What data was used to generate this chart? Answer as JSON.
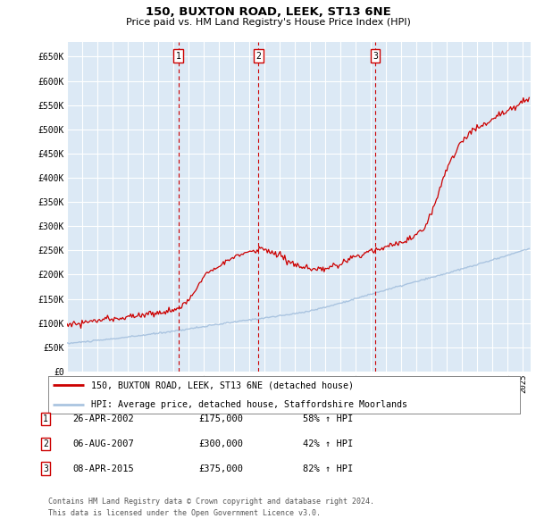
{
  "title": "150, BUXTON ROAD, LEEK, ST13 6NE",
  "subtitle": "Price paid vs. HM Land Registry's House Price Index (HPI)",
  "ylabel_ticks": [
    "£0",
    "£50K",
    "£100K",
    "£150K",
    "£200K",
    "£250K",
    "£300K",
    "£350K",
    "£400K",
    "£450K",
    "£500K",
    "£550K",
    "£600K",
    "£650K"
  ],
  "ytick_vals": [
    0,
    50000,
    100000,
    150000,
    200000,
    250000,
    300000,
    350000,
    400000,
    450000,
    500000,
    550000,
    600000,
    650000
  ],
  "ylim": [
    0,
    680000
  ],
  "xlim_start": 1995.0,
  "xlim_end": 2025.5,
  "background_color": "#dce9f5",
  "plot_bg_color": "#dce9f5",
  "grid_color": "#ffffff",
  "red_line_color": "#cc0000",
  "blue_line_color": "#aac4e0",
  "dashed_line_color": "#cc0000",
  "transaction_markers": [
    {
      "label": "1",
      "date_x": 2002.32,
      "price": 175000
    },
    {
      "label": "2",
      "date_x": 2007.59,
      "price": 300000
    },
    {
      "label": "3",
      "date_x": 2015.27,
      "price": 375000
    }
  ],
  "legend_entries": [
    {
      "label": "150, BUXTON ROAD, LEEK, ST13 6NE (detached house)",
      "color": "#cc0000"
    },
    {
      "label": "HPI: Average price, detached house, Staffordshire Moorlands",
      "color": "#aac4e0"
    }
  ],
  "footer_lines": [
    "Contains HM Land Registry data © Crown copyright and database right 2024.",
    "This data is licensed under the Open Government Licence v3.0."
  ],
  "table_rows": [
    {
      "num": "1",
      "date": "26-APR-2002",
      "price": "£175,000",
      "hpi": "58% ↑ HPI"
    },
    {
      "num": "2",
      "date": "06-AUG-2007",
      "price": "£300,000",
      "hpi": "42% ↑ HPI"
    },
    {
      "num": "3",
      "date": "08-APR-2015",
      "price": "£375,000",
      "hpi": "82% ↑ HPI"
    }
  ]
}
